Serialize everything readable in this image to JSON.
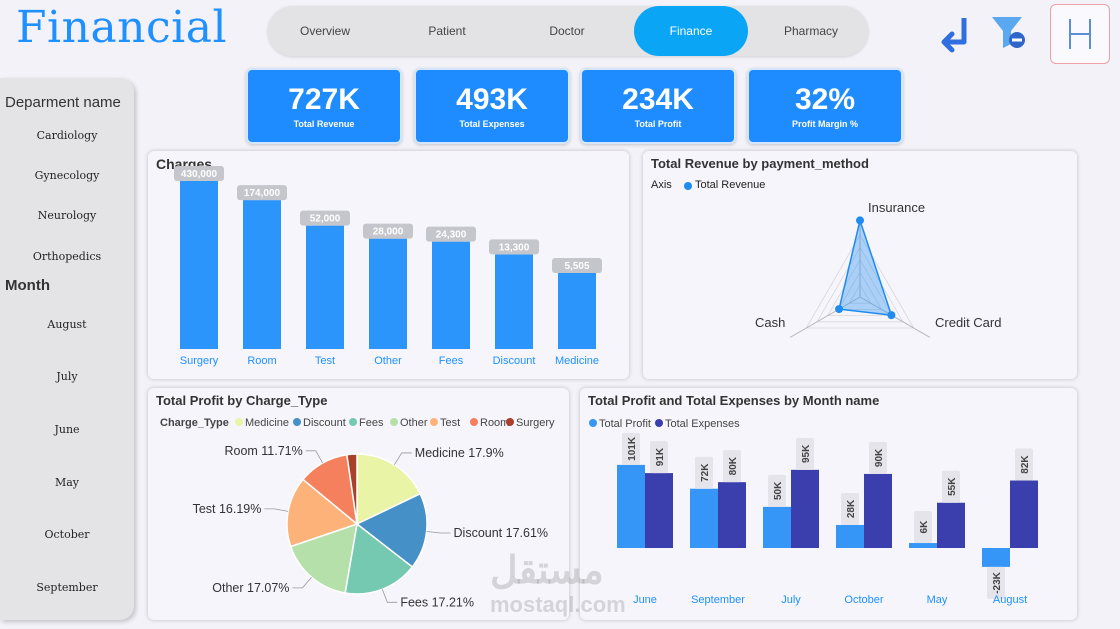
{
  "title": "Financial",
  "nav": {
    "tabs": [
      {
        "label": "Overview",
        "active": false
      },
      {
        "label": "Patient",
        "active": false
      },
      {
        "label": "Doctor",
        "active": false
      },
      {
        "label": "Finance",
        "active": true
      },
      {
        "label": "Pharmacy",
        "active": false
      }
    ]
  },
  "toolbar": {
    "back_icon": "return-arrow-icon",
    "filter_icon": "filter-clear-icon",
    "logo_icon": "h-logo-icon"
  },
  "kpis": [
    {
      "value": "727K",
      "label": "Total Revenue"
    },
    {
      "value": "493K",
      "label": "Total Expenses"
    },
    {
      "value": "234K",
      "label": "Total Profit"
    },
    {
      "value": "32%",
      "label": "Profit Margin %"
    }
  ],
  "sidebar": {
    "dept_header": "Deparment name",
    "departments": [
      "Cardiology",
      "Gynecology",
      "Neurology",
      "Orthopedics"
    ],
    "month_header": "Month",
    "months": [
      "August",
      "July",
      "June",
      "May",
      "October",
      "September"
    ]
  },
  "colors": {
    "accent": "#1e90ff",
    "bar": "#2b95fb",
    "profit": "#3596f7",
    "expenses": "#3b3fae",
    "active_tab": "#0aa5f5"
  },
  "watermark": {
    "arabic": "مستقل",
    "latin": "mostaql.com"
  },
  "chart_data": [
    {
      "type": "bar",
      "title": "Charges",
      "categories": [
        "Surgery",
        "Room",
        "Test",
        "Other",
        "Fees",
        "Discount",
        "Medicine"
      ],
      "values": [
        430000,
        174000,
        52000,
        28000,
        24300,
        13300,
        5505
      ],
      "labels": [
        "430,000",
        "174,000",
        "52,000",
        "28,000",
        "24,300",
        "13,300",
        "5,505"
      ],
      "scale": "log"
    },
    {
      "type": "radar",
      "title": "Total Revenue by payment_method",
      "legend_axis": "Axis",
      "series_name": "Total Revenue",
      "categories": [
        "Insurance",
        "Credit Card",
        "Cash"
      ],
      "values": [
        0.95,
        0.45,
        0.3
      ]
    },
    {
      "type": "pie",
      "title": "Total Profit by Charge_Type",
      "legend_title": "Charge_Type",
      "slices": [
        {
          "name": "Medicine",
          "pct": 17.9,
          "label": "Medicine 17.9%",
          "color": "#e9f4a7"
        },
        {
          "name": "Discount",
          "pct": 17.61,
          "label": "Discount 17.61%",
          "color": "#4590c6"
        },
        {
          "name": "Fees",
          "pct": 17.21,
          "label": "Fees 17.21%",
          "color": "#75c9b1"
        },
        {
          "name": "Other",
          "pct": 17.07,
          "label": "Other 17.07%",
          "color": "#b5e0aa"
        },
        {
          "name": "Test",
          "pct": 16.19,
          "label": "Test 16.19%",
          "color": "#fcb279"
        },
        {
          "name": "Room",
          "pct": 11.71,
          "label": "Room 11.71%",
          "color": "#f5805d"
        },
        {
          "name": "Surgery",
          "pct": 2.31,
          "label": "",
          "color": "#a8402a"
        }
      ]
    },
    {
      "type": "bar",
      "title": "Total Profit and Total Expenses by Month name",
      "categories": [
        "June",
        "September",
        "July",
        "October",
        "May",
        "August"
      ],
      "series": [
        {
          "name": "Total Profit",
          "values": [
            101,
            72,
            50,
            28,
            6,
            -23
          ],
          "labels": [
            "101K",
            "72K",
            "50K",
            "28K",
            "6K",
            "-23K"
          ]
        },
        {
          "name": "Total Expenses",
          "values": [
            91,
            80,
            95,
            90,
            55,
            82
          ],
          "labels": [
            "91K",
            "80K",
            "95K",
            "90K",
            "55K",
            "82K"
          ]
        }
      ]
    }
  ]
}
